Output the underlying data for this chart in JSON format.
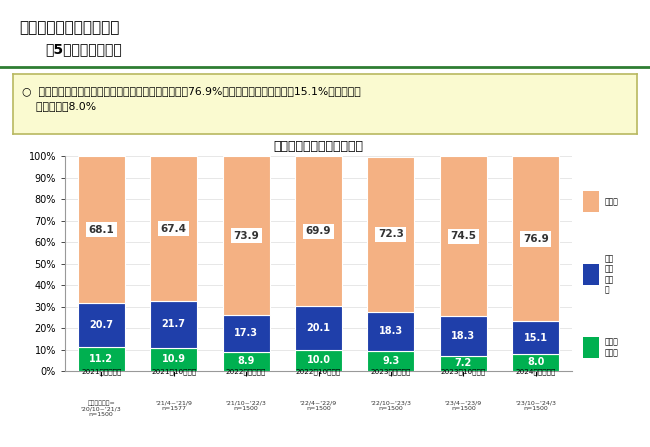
{
  "title": "利用した金利タイプの割合",
  "header_title": "１．利用した住宅ローン",
  "header_subtitle": "（5）　金利タイプ",
  "summary_text": "○  利用した住宅ローンの金利タイプは、「変動型」が76.9%、「固定期間選択型」が15.1%、「全期間\n    固定型」が8.0%",
  "categories": [
    "2021年４月調査",
    "2021年10月調査",
    "2022年４月調査",
    "2022年10月調査",
    "2023年４月調査",
    "2023年10月調査",
    "2024年４月調査"
  ],
  "sublabels": [
    "調査対象期間=\n'20/10~'21/3\nn=1500",
    "'21/4~'21/9\nn=1577",
    "'21/10~'22/3\nn=1500",
    "'22/4~'22/9\nn=1500",
    "'22/10~'23/3\nn=1500",
    "'23/4~'23/9\nn=1500",
    "'23/10~'24/3\nn=1500"
  ],
  "green_values": [
    11.2,
    10.9,
    8.9,
    10.0,
    9.3,
    7.2,
    8.0
  ],
  "blue_values": [
    20.7,
    21.7,
    17.3,
    20.1,
    18.3,
    18.3,
    15.1
  ],
  "orange_values": [
    68.1,
    67.4,
    73.9,
    69.9,
    72.3,
    74.5,
    76.9
  ],
  "green_color": "#00b050",
  "blue_color": "#1f3faa",
  "orange_color": "#f4b183",
  "legend_orange": "変動型",
  "legend_blue": "固定\n期間\n選択\n型",
  "legend_green": "全期間\n固定型",
  "ylim": [
    0,
    100
  ],
  "yticks": [
    0,
    10,
    20,
    30,
    40,
    50,
    60,
    70,
    80,
    90,
    100
  ],
  "bar_width": 0.65,
  "background_color": "#ffffff",
  "summary_bg": "#fafad0",
  "summary_border": "#b8b860",
  "header_line_color": "#2e7d32"
}
